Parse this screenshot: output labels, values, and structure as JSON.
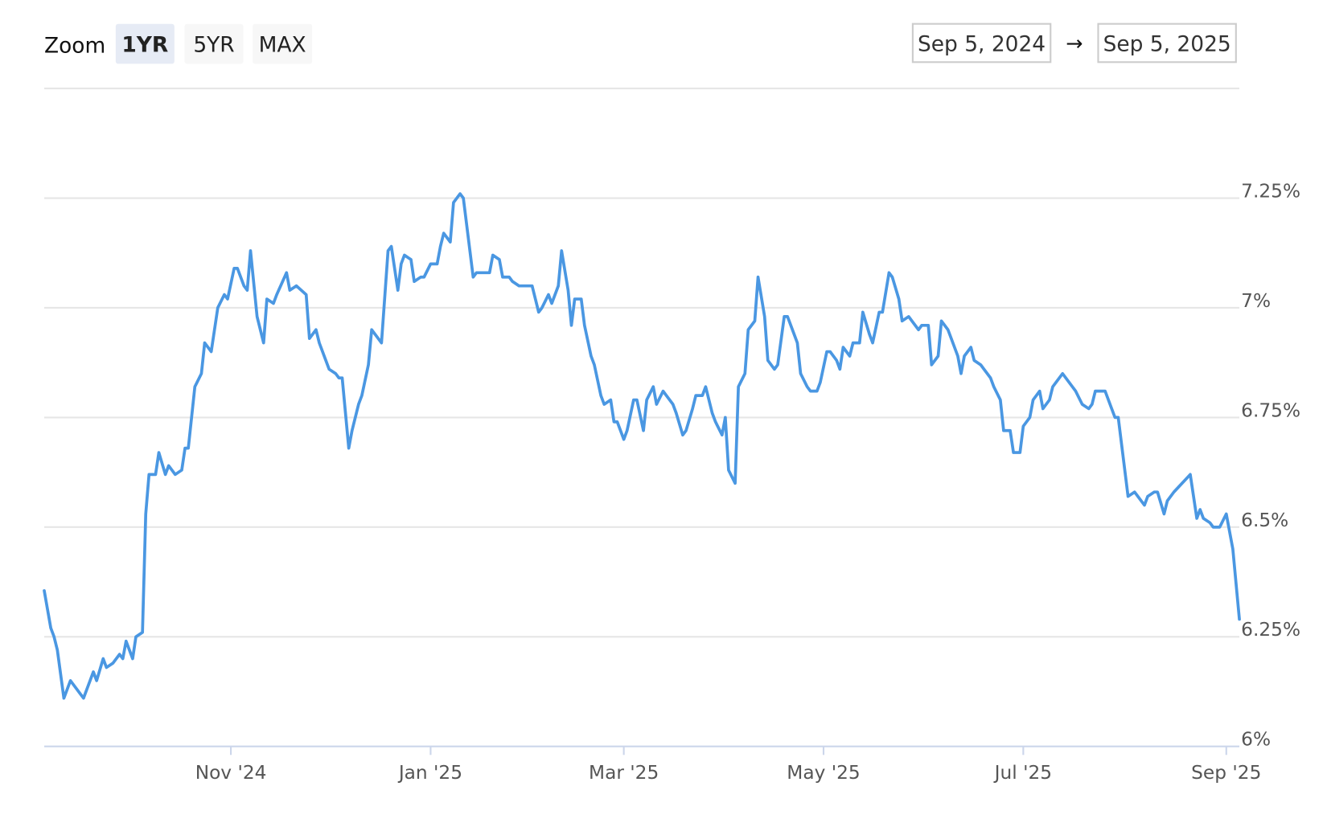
{
  "chart_data": {
    "type": "line",
    "zoom_label": "Zoom",
    "zoom_buttons": [
      "1YR",
      "5YR",
      "MAX"
    ],
    "active_zoom": 0,
    "date_from": "Sep 5, 2024",
    "date_separator": "→",
    "date_to": "Sep 5, 2025",
    "color": "#4a97e2",
    "grid": true,
    "xlim": [
      0,
      365
    ],
    "xticks": [
      {
        "value": 57,
        "label": "Nov '24"
      },
      {
        "value": 118,
        "label": "Jan '25"
      },
      {
        "value": 177,
        "label": "Mar '25"
      },
      {
        "value": 238,
        "label": "May '25"
      },
      {
        "value": 299,
        "label": "Jul '25"
      },
      {
        "value": 361,
        "label": "Sep '25"
      }
    ],
    "ylim": [
      6,
      7.5
    ],
    "yticks": [
      {
        "value": 6,
        "label": "6%"
      },
      {
        "value": 6.25,
        "label": "6.25%"
      },
      {
        "value": 6.5,
        "label": "6.5%"
      },
      {
        "value": 6.75,
        "label": "6.75%"
      },
      {
        "value": 7,
        "label": "7%"
      },
      {
        "value": 7.25,
        "label": "7.25%"
      }
    ],
    "x": [
      0,
      2,
      3,
      4,
      6,
      8,
      9,
      11,
      12,
      14,
      15,
      16,
      18,
      19,
      21,
      23,
      24,
      25,
      27,
      28,
      30,
      31,
      32,
      34,
      35,
      37,
      38,
      40,
      42,
      43,
      44,
      46,
      48,
      49,
      51,
      53,
      55,
      56,
      58,
      59,
      61,
      62,
      63,
      65,
      67,
      68,
      70,
      71,
      74,
      75,
      77,
      80,
      81,
      83,
      84,
      86,
      87,
      89,
      90,
      91,
      93,
      94,
      96,
      97,
      99,
      100,
      102,
      103,
      105,
      106,
      108,
      109,
      110,
      112,
      113,
      115,
      116,
      118,
      120,
      121,
      122,
      124,
      125,
      127,
      128,
      130,
      131,
      132,
      134,
      136,
      137,
      139,
      140,
      142,
      143,
      145,
      146,
      149,
      151,
      152,
      154,
      155,
      157,
      158,
      160,
      161,
      162,
      164,
      165,
      167,
      168,
      170,
      171,
      173,
      174,
      175,
      177,
      178,
      180,
      181,
      183,
      184,
      186,
      187,
      189,
      190,
      192,
      193,
      195,
      196,
      198,
      199,
      201,
      202,
      204,
      205,
      207,
      208,
      209,
      211,
      212,
      214,
      215,
      217,
      218,
      220,
      221,
      223,
      224,
      226,
      227,
      229,
      230,
      231,
      233,
      234,
      236,
      237,
      239,
      240,
      242,
      243,
      244,
      246,
      247,
      249,
      250,
      252,
      253,
      255,
      256,
      258,
      259,
      261,
      262,
      264,
      265,
      267,
      268,
      270,
      271,
      273,
      274,
      276,
      277,
      279,
      280,
      281,
      283,
      284,
      286,
      287,
      289,
      290,
      292,
      293,
      295,
      296,
      298,
      299,
      301,
      302,
      304,
      305,
      307,
      308,
      309,
      311,
      313,
      314,
      315,
      317,
      319,
      320,
      321,
      324,
      326,
      327,
      328,
      330,
      331,
      333,
      334,
      336,
      337,
      339,
      340,
      342,
      343,
      345,
      350,
      352,
      353,
      354,
      356,
      357,
      359,
      361,
      363,
      365
    ],
    "values": [
      6.355,
      6.27,
      6.25,
      6.22,
      6.11,
      6.15,
      6.14,
      6.12,
      6.11,
      6.15,
      6.17,
      6.15,
      6.2,
      6.18,
      6.19,
      6.21,
      6.2,
      6.24,
      6.2,
      6.25,
      6.26,
      6.53,
      6.62,
      6.62,
      6.67,
      6.62,
      6.64,
      6.62,
      6.63,
      6.68,
      6.68,
      6.82,
      6.85,
      6.92,
      6.9,
      7,
      7.03,
      7.02,
      7.09,
      7.09,
      7.05,
      7.04,
      7.13,
      6.98,
      6.92,
      7.02,
      7.01,
      7.03,
      7.08,
      7.04,
      7.05,
      7.03,
      6.93,
      6.95,
      6.92,
      6.88,
      6.86,
      6.85,
      6.84,
      6.84,
      6.68,
      6.72,
      6.78,
      6.8,
      6.87,
      6.95,
      6.93,
      6.92,
      7.13,
      7.14,
      7.04,
      7.1,
      7.12,
      7.11,
      7.06,
      7.07,
      7.07,
      7.1,
      7.1,
      7.14,
      7.17,
      7.15,
      7.24,
      7.26,
      7.25,
      7.13,
      7.07,
      7.08,
      7.08,
      7.08,
      7.12,
      7.11,
      7.07,
      7.07,
      7.06,
      7.05,
      7.05,
      7.05,
      6.99,
      7,
      7.03,
      7.01,
      7.05,
      7.13,
      7.04,
      6.96,
      7.02,
      7.02,
      6.96,
      6.89,
      6.87,
      6.8,
      6.78,
      6.79,
      6.74,
      6.74,
      6.7,
      6.72,
      6.79,
      6.79,
      6.72,
      6.79,
      6.82,
      6.78,
      6.81,
      6.8,
      6.78,
      6.76,
      6.71,
      6.72,
      6.77,
      6.8,
      6.8,
      6.82,
      6.76,
      6.74,
      6.71,
      6.75,
      6.63,
      6.6,
      6.82,
      6.85,
      6.95,
      6.97,
      7.07,
      6.98,
      6.88,
      6.86,
      6.87,
      6.98,
      6.98,
      6.94,
      6.92,
      6.85,
      6.82,
      6.81,
      6.81,
      6.83,
      6.9,
      6.9,
      6.88,
      6.86,
      6.91,
      6.89,
      6.92,
      6.92,
      6.99,
      6.94,
      6.92,
      6.99,
      6.99,
      7.08,
      7.07,
      7.02,
      6.97,
      6.98,
      6.97,
      6.95,
      6.96,
      6.96,
      6.87,
      6.89,
      6.97,
      6.95,
      6.93,
      6.89,
      6.85,
      6.89,
      6.91,
      6.88,
      6.87,
      6.86,
      6.84,
      6.82,
      6.79,
      6.72,
      6.72,
      6.67,
      6.67,
      6.73,
      6.75,
      6.79,
      6.81,
      6.77,
      6.79,
      6.82,
      6.83,
      6.85,
      6.83,
      6.82,
      6.81,
      6.78,
      6.77,
      6.78,
      6.81,
      6.81,
      6.77,
      6.75,
      6.75,
      6.63,
      6.57,
      6.58,
      6.57,
      6.55,
      6.57,
      6.58,
      6.58,
      6.53,
      6.56,
      6.58,
      6.62,
      6.52,
      6.54,
      6.52,
      6.51,
      6.5,
      6.5,
      6.53,
      6.45,
      6.29
    ]
  }
}
